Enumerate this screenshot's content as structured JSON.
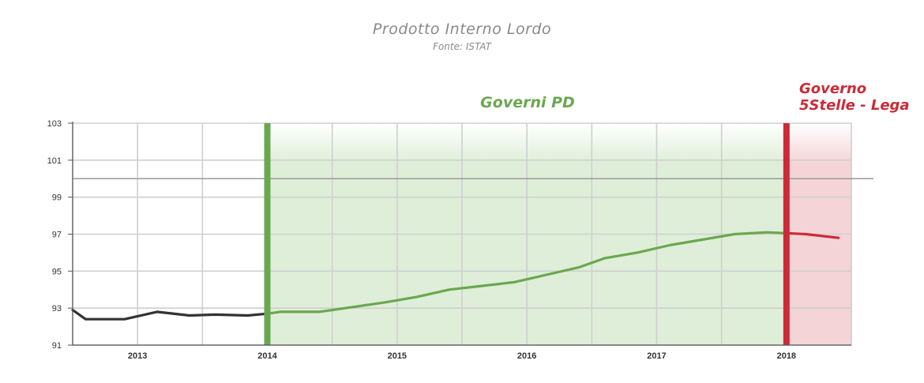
{
  "title": "Prodotto Interno Lordo",
  "subtitle": "Fonte: ISTAT",
  "chart_data": {
    "type": "line",
    "title": "Prodotto Interno Lordo",
    "subtitle": "Fonte: ISTAT",
    "xlabel": "",
    "ylabel": "",
    "x_ticks": [
      "2013",
      "2014",
      "2015",
      "2016",
      "2017",
      "2018"
    ],
    "y_ticks": [
      91,
      93,
      95,
      97,
      99,
      101,
      103
    ],
    "ylim": [
      91,
      103
    ],
    "xlim": [
      2012.5,
      2018.5
    ],
    "reference_line": 100,
    "grid": true,
    "legend": "none",
    "regions": [
      {
        "label": "Governi PD",
        "from": 2014,
        "to": 2018,
        "color": "#6aa84f"
      },
      {
        "label": "Governo\n5Stelle - Lega",
        "from": 2018,
        "to": 2018.5,
        "color": "#cc2a36"
      }
    ],
    "series": [
      {
        "color": "#333333",
        "points": [
          [
            2012.5,
            92.9
          ],
          [
            2012.6,
            92.4
          ],
          [
            2012.9,
            92.4
          ],
          [
            2013.15,
            92.8
          ],
          [
            2013.4,
            92.6
          ],
          [
            2013.6,
            92.65
          ],
          [
            2013.85,
            92.6
          ],
          [
            2014.0,
            92.7
          ]
        ]
      },
      {
        "color": "#6aa84f",
        "points": [
          [
            2014.0,
            92.7
          ],
          [
            2014.1,
            92.8
          ],
          [
            2014.4,
            92.8
          ],
          [
            2014.6,
            93.0
          ],
          [
            2014.9,
            93.3
          ],
          [
            2015.15,
            93.6
          ],
          [
            2015.4,
            94.0
          ],
          [
            2015.65,
            94.2
          ],
          [
            2015.9,
            94.4
          ],
          [
            2016.15,
            94.8
          ],
          [
            2016.4,
            95.2
          ],
          [
            2016.6,
            95.7
          ],
          [
            2016.85,
            96.0
          ],
          [
            2017.1,
            96.4
          ],
          [
            2017.35,
            96.7
          ],
          [
            2017.6,
            97.0
          ],
          [
            2017.85,
            97.1
          ],
          [
            2018.0,
            97.05
          ]
        ]
      },
      {
        "color": "#cc2a36",
        "points": [
          [
            2018.0,
            97.05
          ],
          [
            2018.15,
            97.0
          ],
          [
            2018.4,
            96.8
          ]
        ]
      }
    ]
  }
}
